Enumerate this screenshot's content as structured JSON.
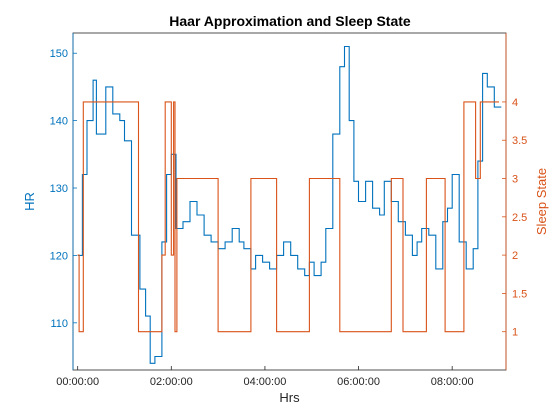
{
  "chart_data": {
    "type": "line",
    "title": "Haar Approximation and Sleep State",
    "xlabel": "Hrs",
    "ylabel_left": "HR",
    "ylabel_right": "Sleep State",
    "x_unit": "hours",
    "xlim": [
      -0.1,
      9.15
    ],
    "ylim_left": [
      103,
      153
    ],
    "ylim_right": [
      0.5,
      4.9
    ],
    "x_ticks": [
      0,
      2,
      4,
      6,
      8
    ],
    "x_tick_labels": [
      "00:00:00",
      "02:00:00",
      "04:00:00",
      "06:00:00",
      "08:00:00"
    ],
    "y_left_ticks": [
      110,
      120,
      130,
      140,
      150
    ],
    "y_left_tick_labels": [
      "110",
      "120",
      "130",
      "140",
      "150"
    ],
    "y_right_ticks": [
      1,
      1.5,
      2,
      2.5,
      3,
      3.5,
      4
    ],
    "y_right_tick_labels": [
      "1",
      "1.5",
      "2",
      "2.5",
      "3",
      "3.5",
      "4"
    ],
    "grid": false,
    "colors": {
      "hr": "#0072BD",
      "sleep": "#D95319",
      "axis": "#262626"
    },
    "series": [
      {
        "name": "HR",
        "axis": "left",
        "step": true,
        "x": [
          0,
          0.1,
          0.2,
          0.33,
          0.4,
          0.6,
          0.75,
          0.9,
          1.0,
          1.15,
          1.33,
          1.45,
          1.55,
          1.65,
          1.8,
          1.9,
          2.0,
          2.1,
          2.25,
          2.4,
          2.55,
          2.7,
          2.85,
          3.0,
          3.15,
          3.3,
          3.45,
          3.55,
          3.7,
          3.8,
          3.95,
          4.1,
          4.25,
          4.4,
          4.55,
          4.7,
          4.85,
          4.95,
          5.05,
          5.2,
          5.3,
          5.45,
          5.6,
          5.7,
          5.8,
          5.9,
          6.0,
          6.15,
          6.3,
          6.45,
          6.55,
          6.7,
          6.85,
          7.0,
          7.15,
          7.25,
          7.35,
          7.5,
          7.65,
          7.8,
          7.9,
          8.0,
          8.15,
          8.3,
          8.45,
          8.55,
          8.65,
          8.75,
          8.9,
          9.05
        ],
        "values": [
          120,
          132,
          140,
          146,
          138,
          145,
          141,
          140,
          137,
          123,
          115,
          111,
          104,
          105,
          122,
          132,
          135,
          124,
          125,
          128,
          126,
          123,
          122,
          121,
          122,
          124,
          122,
          121,
          118,
          120,
          119,
          118,
          120,
          122,
          120,
          118,
          117,
          119,
          117,
          119,
          124,
          138,
          148,
          151,
          140,
          131,
          128,
          131,
          127,
          126,
          131,
          128,
          125,
          123,
          120,
          122,
          124,
          123,
          118,
          125,
          127,
          132,
          122,
          118,
          121,
          134,
          147,
          145,
          142,
          142
        ]
      },
      {
        "name": "Sleep State",
        "axis": "right",
        "step": true,
        "x": [
          0,
          0.03,
          0.12,
          1.3,
          1.8,
          1.87,
          2.0,
          2.05,
          2.08,
          2.12,
          2.2,
          3.0,
          3.7,
          4.25,
          4.95,
          5.6,
          6.7,
          6.95,
          7.45,
          7.85,
          8.25,
          8.5,
          8.6,
          8.7,
          9.0
        ],
        "values": [
          2,
          1,
          4,
          1,
          2,
          4,
          2,
          4,
          1,
          3,
          3,
          1,
          3,
          1,
          3,
          1,
          3,
          1,
          3,
          1,
          4,
          3,
          4,
          4,
          4
        ]
      }
    ]
  }
}
